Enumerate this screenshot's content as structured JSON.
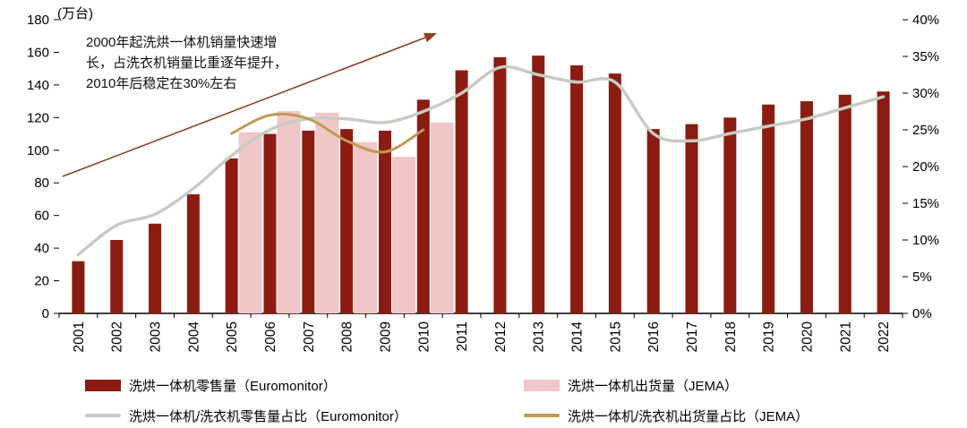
{
  "chart_data": {
    "type": "bar",
    "title": "",
    "unit_label": "(万台)",
    "x_tick_labels": [
      "2001",
      "2002",
      "2003",
      "2004",
      "2005",
      "2006",
      "2007",
      "2008",
      "2009",
      "2010",
      "2011",
      "2012",
      "2013",
      "2014",
      "2015",
      "2016",
      "2017",
      "2018",
      "2019",
      "2020",
      "2021",
      "2022"
    ],
    "left_axis": {
      "min": 0,
      "max": 180,
      "tick_labels": [
        "0",
        "20",
        "40",
        "60",
        "80",
        "100",
        "120",
        "140",
        "160",
        "180"
      ]
    },
    "right_axis": {
      "min": 0,
      "max": 40,
      "tick_labels": [
        "0%",
        "5%",
        "10%",
        "15%",
        "20%",
        "25%",
        "30%",
        "35%",
        "40%"
      ]
    },
    "series": [
      {
        "name": "洗烘一体机零售量（Euromonitor）",
        "type": "bar",
        "axis": "left",
        "color": "#8b1c12",
        "values": [
          32,
          45,
          55,
          73,
          95,
          110,
          112,
          113,
          112,
          131,
          149,
          157,
          158,
          152,
          147,
          113,
          116,
          120,
          128,
          130,
          134,
          136
        ]
      },
      {
        "name": "洗烘一体机出货量（JEMA）",
        "type": "bar",
        "axis": "left",
        "color": "#f1c6c8",
        "values": [
          null,
          null,
          null,
          null,
          111,
          124,
          123,
          105,
          96,
          117,
          null,
          null,
          null,
          null,
          null,
          null,
          null,
          null,
          null,
          null,
          null,
          null
        ]
      },
      {
        "name": "洗烘一体机/洗衣机零售量占比（Euromonitor）",
        "type": "line",
        "axis": "right",
        "color": "#c7ccc3",
        "values": [
          8,
          12,
          13.5,
          17,
          21.5,
          25,
          26.5,
          26.5,
          26,
          27.5,
          30,
          33.5,
          32.5,
          31.5,
          31.5,
          24.5,
          23.5,
          24.5,
          25.5,
          26.5,
          28,
          29.5
        ]
      },
      {
        "name": "洗烘一体机/洗衣机出货量占比（JEMA）",
        "type": "line",
        "axis": "right",
        "color": "#c09a50",
        "values": [
          null,
          null,
          null,
          null,
          24.5,
          27,
          26.5,
          23.5,
          22,
          25,
          null,
          null,
          null,
          null,
          null,
          null,
          null,
          null,
          null,
          null,
          null,
          null
        ]
      }
    ],
    "annotation": {
      "lines": [
        "2000年起洗烘一体机销量快速增",
        "长，占洗衣机销量比重逐年提升，",
        "2010年后稳定在30%左右"
      ],
      "arrow_color": "#8f3e1e"
    },
    "legend_position": "bottom",
    "grid": false
  }
}
